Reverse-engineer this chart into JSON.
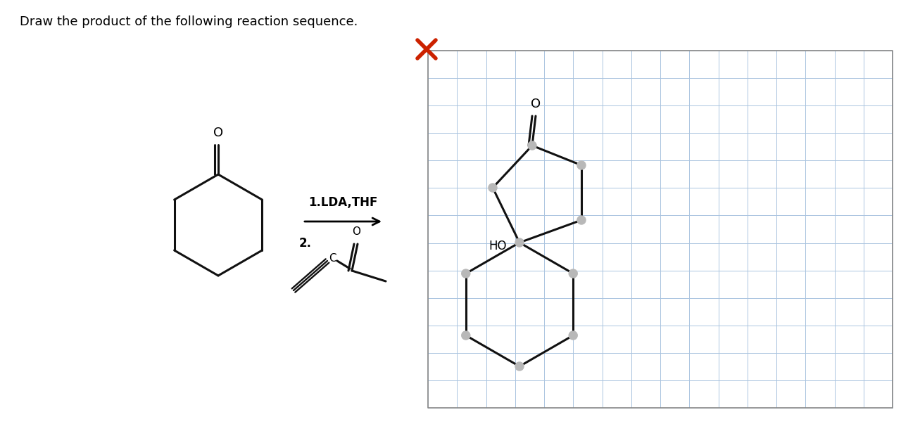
{
  "title_text": "Draw the product of the following reaction sequence.",
  "title_fontsize": 13,
  "bg_color": "#ffffff",
  "grid_color": "#aac4e0",
  "bond_color": "#111111",
  "bond_lw": 2.2,
  "node_color": "#b8b8b8",
  "node_r": 0.01,
  "lda_text": "1.LDA,THF",
  "step2_text": "2.",
  "x_color": "#cc2200"
}
